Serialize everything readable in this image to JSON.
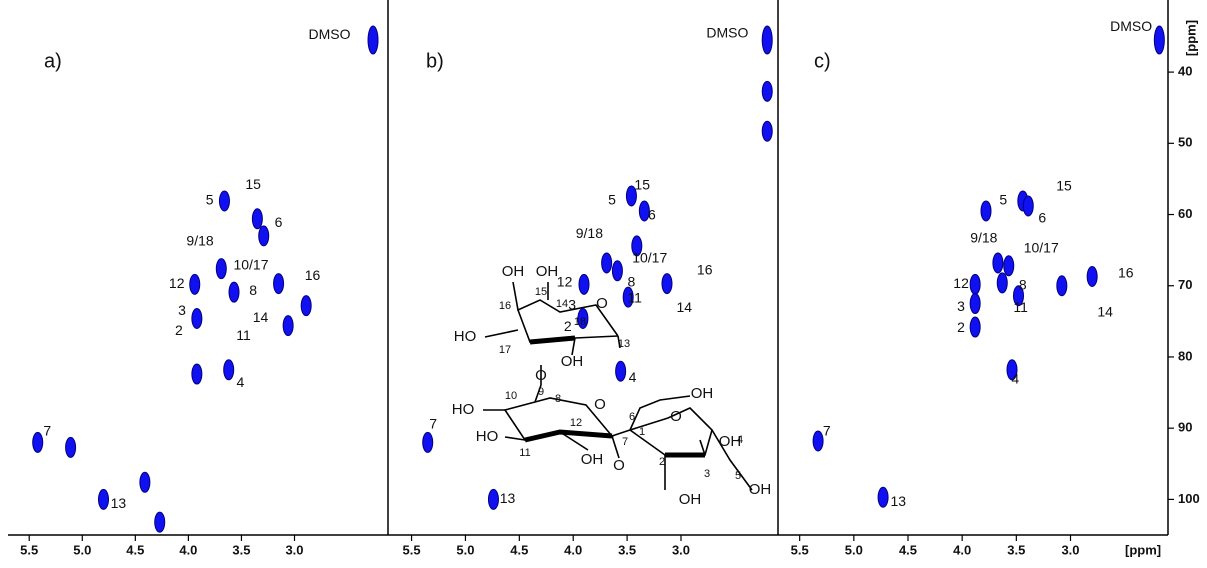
{
  "chart_data": [
    {
      "type": "scatter",
      "label": "a)",
      "color": "#1010f0",
      "x": [
        2.26,
        3.66,
        3.35,
        3.29,
        3.69,
        3.57,
        3.15,
        2.89,
        3.94,
        3.92,
        3.06,
        3.62,
        3.92,
        5.42,
        5.11,
        4.8,
        4.41,
        4.27
      ],
      "y": [
        35.5,
        58.1,
        60.6,
        63.0,
        67.6,
        70.9,
        69.7,
        72.8,
        69.8,
        74.6,
        75.6,
        81.8,
        82.4,
        92.0,
        92.7,
        100.0,
        97.6,
        103.2
      ],
      "annotations": [
        {
          "text": "DMSO",
          "x": 2.67,
          "y": 34.8
        },
        {
          "text": "15",
          "x": 3.39,
          "y": 55.9
        },
        {
          "text": "5",
          "x": 3.8,
          "y": 58.1
        },
        {
          "text": "6",
          "x": 3.15,
          "y": 61.2
        },
        {
          "text": "9/18",
          "x": 3.89,
          "y": 63.8
        },
        {
          "text": "10/17",
          "x": 3.41,
          "y": 67.2
        },
        {
          "text": "16",
          "x": 2.83,
          "y": 68.7
        },
        {
          "text": "12",
          "x": 4.11,
          "y": 69.8
        },
        {
          "text": "8",
          "x": 3.39,
          "y": 70.8
        },
        {
          "text": "3",
          "x": 4.06,
          "y": 73.6
        },
        {
          "text": "14",
          "x": 3.32,
          "y": 74.6
        },
        {
          "text": "2",
          "x": 4.09,
          "y": 76.4
        },
        {
          "text": "11",
          "x": 3.48,
          "y": 77.1
        },
        {
          "text": "4",
          "x": 3.51,
          "y": 83.7
        },
        {
          "text": "7",
          "x": 5.33,
          "y": 90.5
        },
        {
          "text": "13",
          "x": 4.66,
          "y": 100.7
        }
      ],
      "xlim": [
        5.7,
        2.1
      ],
      "ylim": [
        105,
        31
      ],
      "xticks": [
        5.5,
        {
          "value": 5,
          "label": "5.0"
        },
        4.5,
        {
          "value": 4,
          "label": "4.0"
        },
        3.5,
        {
          "value": 3,
          "label": "3.0"
        }
      ]
    },
    {
      "type": "scatter",
      "label": "b)",
      "color": "#1010f0",
      "x": [
        2.2,
        2.2,
        2.2,
        3.46,
        3.34,
        3.41,
        3.69,
        3.59,
        3.13,
        3.9,
        3.91,
        3.49,
        3.56,
        5.35,
        4.74
      ],
      "y": [
        35.5,
        42.7,
        48.3,
        57.4,
        59.5,
        64.4,
        66.8,
        67.9,
        69.7,
        69.8,
        74.6,
        71.6,
        82.0,
        92.0,
        100.0
      ],
      "annotations": [
        {
          "text": "DMSO",
          "x": 2.57,
          "y": 34.6
        },
        {
          "text": "15",
          "x": 3.36,
          "y": 56.0
        },
        {
          "text": "5",
          "x": 3.64,
          "y": 58.1
        },
        {
          "text": "6",
          "x": 3.27,
          "y": 60.2
        },
        {
          "text": "9/18",
          "x": 3.85,
          "y": 62.8
        },
        {
          "text": "10/17",
          "x": 3.29,
          "y": 66.2
        },
        {
          "text": "16",
          "x": 2.78,
          "y": 67.9
        },
        {
          "text": "12",
          "x": 4.08,
          "y": 69.6
        },
        {
          "text": "8",
          "x": 3.46,
          "y": 69.6
        },
        {
          "text": "3",
          "x": 4.01,
          "y": 72.8
        },
        {
          "text": "11",
          "x": 3.43,
          "y": 71.8
        },
        {
          "text": "14",
          "x": 2.97,
          "y": 73.2
        },
        {
          "text": "2",
          "x": 4.05,
          "y": 75.8
        },
        {
          "text": "4",
          "x": 3.45,
          "y": 83.0
        },
        {
          "text": "7",
          "x": 5.3,
          "y": 89.5
        },
        {
          "text": "13",
          "x": 4.61,
          "y": 100.0
        }
      ],
      "xlim": [
        5.7,
        2.1
      ],
      "ylim": [
        105,
        31
      ],
      "xticks": [
        5.5,
        {
          "value": 5,
          "label": "5.0"
        },
        4.5,
        {
          "value": 4,
          "label": "4.0"
        },
        3.5,
        {
          "value": 3,
          "label": "3.0"
        }
      ]
    },
    {
      "type": "scatter",
      "label": "c)",
      "color": "#1010f0",
      "x": [
        2.18,
        3.44,
        3.39,
        3.78,
        3.67,
        3.57,
        3.63,
        3.08,
        2.8,
        3.88,
        3.88,
        3.88,
        3.48,
        3.54,
        5.33,
        4.73
      ],
      "y": [
        35.5,
        58.1,
        58.8,
        59.5,
        66.8,
        67.2,
        69.6,
        70.0,
        68.7,
        69.8,
        72.5,
        75.8,
        71.4,
        81.8,
        91.8,
        99.7
      ],
      "annotations": [
        {
          "text": "DMSO",
          "x": 2.44,
          "y": 33.7
        },
        {
          "text": "15",
          "x": 3.06,
          "y": 56.1
        },
        {
          "text": "5",
          "x": 3.62,
          "y": 58.1
        },
        {
          "text": "6",
          "x": 3.26,
          "y": 60.6
        },
        {
          "text": "9/18",
          "x": 3.8,
          "y": 63.4
        },
        {
          "text": "10/17",
          "x": 3.27,
          "y": 64.8
        },
        {
          "text": "16",
          "x": 2.49,
          "y": 68.3
        },
        {
          "text": "12",
          "x": 4.01,
          "y": 69.8
        },
        {
          "text": "8",
          "x": 3.44,
          "y": 70.0
        },
        {
          "text": "3",
          "x": 4.01,
          "y": 73.0
        },
        {
          "text": "11",
          "x": 3.46,
          "y": 73.2
        },
        {
          "text": "14",
          "x": 2.68,
          "y": 73.8
        },
        {
          "text": "2",
          "x": 4.01,
          "y": 76.0
        },
        {
          "text": "4",
          "x": 3.51,
          "y": 83.2
        },
        {
          "text": "7",
          "x": 5.25,
          "y": 90.5
        },
        {
          "text": "13",
          "x": 4.59,
          "y": 100.4
        }
      ],
      "xlim": [
        5.7,
        2.1
      ],
      "ylim": [
        105,
        31
      ],
      "xticks": [
        5.5,
        {
          "value": 5,
          "label": "5.0"
        },
        4.5,
        {
          "value": 4,
          "label": "4.0"
        },
        3.5,
        {
          "value": 3,
          "label": "3.0"
        }
      ],
      "yticks": [
        40,
        50,
        60,
        70,
        80,
        90,
        100
      ],
      "xlabel": "[ppm]",
      "ylabel": "[ppm]"
    }
  ],
  "structure": {
    "labels": [
      "OH",
      "OH",
      "16",
      "15",
      "14",
      "O",
      "18",
      "HO",
      "17",
      "OH",
      "13",
      "O",
      "HO",
      "10",
      "9",
      "8",
      "O",
      "6",
      "OH",
      "O",
      "1",
      "12",
      "HO",
      "11",
      "OH",
      "7",
      "O",
      "2",
      "OH",
      "3",
      "4",
      "5",
      "OH",
      "OH"
    ]
  }
}
